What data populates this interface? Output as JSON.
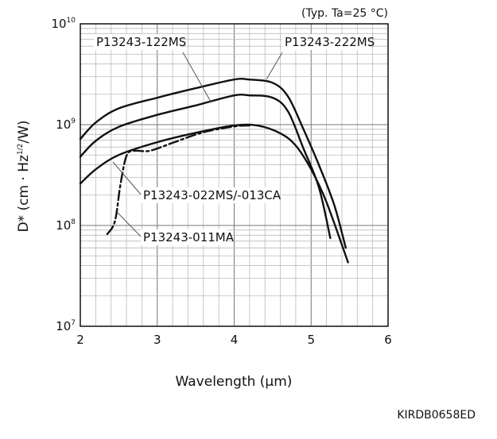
{
  "chart_data": {
    "type": "line",
    "title": "",
    "condition": "(Typ. Ta=25 °C)",
    "xlabel": "Wavelength (μm)",
    "ylabel": {
      "base": "D* (cm · Hz",
      "sup": "1/2",
      "tail": "/W)"
    },
    "xlim": [
      2,
      6
    ],
    "ylim": [
      10000000,
      10000000000
    ],
    "yscale": "log",
    "grid": true,
    "x_ticks": [
      "2",
      "3",
      "4",
      "5",
      "6"
    ],
    "y_ticks": [
      {
        "value": 10000000,
        "base": "10",
        "exp": "7"
      },
      {
        "value": 100000000,
        "base": "10",
        "exp": "8"
      },
      {
        "value": 1000000000,
        "base": "10",
        "exp": "9"
      },
      {
        "value": 10000000000,
        "base": "10",
        "exp": "10"
      }
    ],
    "series": [
      {
        "name": "P13243-222MS",
        "style": "solid",
        "x": [
          2.0,
          2.2,
          2.5,
          3.0,
          3.5,
          4.0,
          4.2,
          4.5,
          4.7,
          4.9,
          5.1,
          5.3,
          5.45
        ],
        "y": [
          720000000.0,
          1050000000.0,
          1450000000.0,
          1850000000.0,
          2300000000.0,
          2800000000.0,
          2800000000.0,
          2600000000.0,
          1900000000.0,
          900000000.0,
          400000000.0,
          160000000.0,
          60000000.0
        ]
      },
      {
        "name": "P13243-122MS",
        "style": "solid",
        "x": [
          2.0,
          2.2,
          2.5,
          3.0,
          3.5,
          4.0,
          4.2,
          4.5,
          4.7,
          4.9,
          5.1,
          5.25
        ],
        "y": [
          480000000.0,
          690000000.0,
          950000000.0,
          1250000000.0,
          1550000000.0,
          1950000000.0,
          1950000000.0,
          1850000000.0,
          1350000000.0,
          580000000.0,
          240000000.0,
          75000000.0
        ]
      },
      {
        "name": "P13243-022MS/-013CA",
        "style": "solid",
        "x": [
          2.0,
          2.2,
          2.5,
          3.0,
          3.5,
          4.0,
          4.3,
          4.6,
          4.8,
          5.0,
          5.2,
          5.48
        ],
        "y": [
          260000000.0,
          360000000.0,
          500000000.0,
          670000000.0,
          830000000.0,
          980000000.0,
          980000000.0,
          820000000.0,
          620000000.0,
          360000000.0,
          170000000.0,
          43000000.0
        ]
      },
      {
        "name": "P13243-011MA",
        "style": "dashdot",
        "x": [
          2.35,
          2.45,
          2.52,
          2.6,
          2.7,
          2.9,
          3.2,
          3.6,
          4.0,
          4.2
        ],
        "y": [
          82000000.0,
          110000000.0,
          250000000.0,
          490000000.0,
          550000000.0,
          550000000.0,
          660000000.0,
          840000000.0,
          960000000.0,
          980000000.0
        ]
      }
    ],
    "labels": [
      {
        "text": "P13243-122MS",
        "series": "P13243-122MS"
      },
      {
        "text": "P13243-222MS",
        "series": "P13243-222MS"
      },
      {
        "text": "P13243-022MS/-013CA",
        "series": "P13243-022MS/-013CA"
      },
      {
        "text": "P13243-011MA",
        "series": "P13243-011MA"
      }
    ],
    "code": "KIRDB0658ED"
  }
}
